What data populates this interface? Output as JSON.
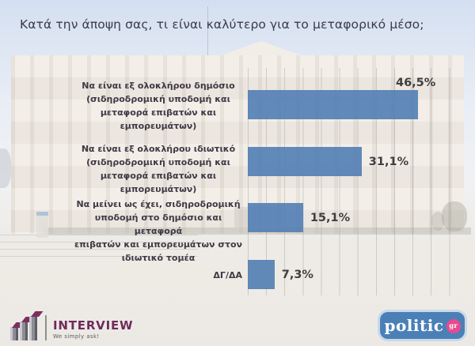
{
  "title": "Κατά την άποψη σας, τι είναι καλύτερο για το μεταφορικό μέσο;",
  "chart_data": {
    "type": "bar",
    "orientation": "horizontal",
    "title": "Κατά την άποψη σας, τι είναι καλύτερο για το μεταφορικό μέσο;",
    "categories": [
      "Να είναι εξ ολοκλήρου δημόσιο (σιδηροδρομική υποδομή και μεταφορά επιβατών και εμπορευμάτων)",
      "Να είναι εξ ολοκλήρου ιδιωτικό (σιδηροδρομική υποδομή και μεταφορά επιβατών και εμπορευμάτων)",
      "Να μείνει ως έχει, σιδηροδρομική υποδομή στο δημόσιο και μεταφορά επιβατών και εμπορευμάτων στον ιδιωτικό τομέα",
      "ΔΓ/ΔΑ"
    ],
    "categories_wrapped": [
      "Να είναι εξ ολοκλήρου δημόσιο\n(σιδηροδρομική υποδομή και\nμεταφορά επιβατών και\nεμπορευμάτων)",
      "Να είναι εξ ολοκλήρου ιδιωτικό\n(σιδηροδρομική υποδομή και\nμεταφορά επιβατών και\nεμπορευμάτων)",
      "Να μείνει ως έχει, σιδηροδρομική\nυποδομή στο δημόσιο και μεταφορά\nεπιβατών και εμπορευμάτων στον\nιδιωτικό τομέα",
      "ΔΓ/ΔΑ"
    ],
    "values": [
      46.5,
      31.1,
      15.1,
      7.3
    ],
    "value_labels": [
      "46,5%",
      "31,1%",
      "15,1%",
      "7,3%"
    ],
    "xlim": [
      0,
      55
    ],
    "gridline_step_pct": 5,
    "grid": true,
    "legend": false,
    "bar_color": "#5580b4",
    "value_color": "#3f3e3e",
    "label_color": "#3e3944"
  },
  "logos": {
    "interview": {
      "name": "INTERVIEW",
      "tagline": "We simply ask!"
    },
    "politic": {
      "text": "politic",
      "suffix": "gr"
    }
  },
  "colors": {
    "bar": "#5580b4",
    "sky": "#c5d5ec",
    "building": "#efe9e0",
    "politic_bg": "#4b80b7",
    "politic_pink": "#e8498f",
    "interview_purple": "#6f2a5c"
  }
}
